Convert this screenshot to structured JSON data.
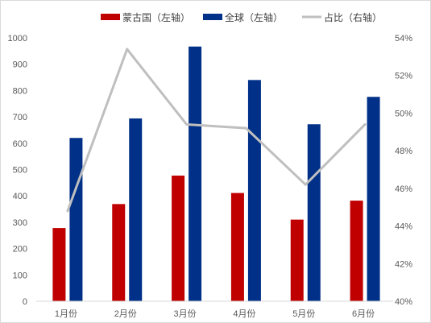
{
  "chart_data": {
    "type": "bar",
    "title": "",
    "categories": [
      "1月份",
      "2月份",
      "3月份",
      "4月份",
      "5月份",
      "6月份"
    ],
    "series": [
      {
        "name": "蒙古国（左轴）",
        "kind": "bar",
        "axis": "left",
        "color": "#c00000",
        "values": [
          278,
          369,
          477,
          411,
          310,
          382
        ]
      },
      {
        "name": "全球（左轴）",
        "kind": "bar",
        "axis": "left",
        "color": "#003087",
        "values": [
          620,
          694,
          967,
          840,
          672,
          776
        ]
      },
      {
        "name": "占比（右轴）",
        "kind": "line",
        "axis": "right",
        "color": "#bfbfbf",
        "values": [
          44.8,
          53.4,
          49.4,
          49.2,
          46.2,
          49.4
        ]
      }
    ],
    "y_left": {
      "min": 0,
      "max": 1000,
      "step": 100,
      "ticks": [
        "0",
        "100",
        "200",
        "300",
        "400",
        "500",
        "600",
        "700",
        "800",
        "900",
        "1000"
      ]
    },
    "y_right": {
      "min": 40,
      "max": 54,
      "step": 2,
      "ticks": [
        "40%",
        "42%",
        "44%",
        "46%",
        "48%",
        "50%",
        "52%",
        "54%"
      ]
    },
    "grid": false,
    "legend_position": "top"
  }
}
